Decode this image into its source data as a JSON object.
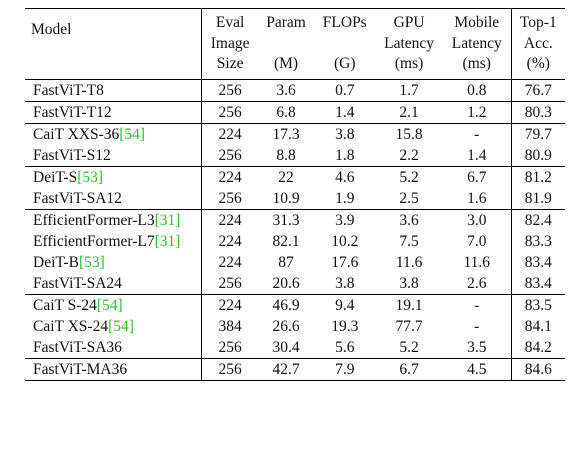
{
  "headers": {
    "model": "Model",
    "eval_image_size": [
      "Eval",
      "Image",
      "Size"
    ],
    "param": [
      "Param",
      "",
      "(M)"
    ],
    "flops": [
      "FLOPs",
      "",
      "(G)"
    ],
    "gpu_latency": [
      "GPU",
      "Latency",
      "(ms)"
    ],
    "mobile_latency": [
      "Mobile",
      "Latency",
      "(ms)"
    ],
    "top1": [
      "Top-1",
      "Acc.",
      "(%)"
    ]
  },
  "groups": [
    {
      "rows": [
        {
          "model": "FastViT-T8",
          "model_bold": true,
          "size": "256",
          "param": "3.6",
          "flops": "0.7",
          "gpu": "1.7",
          "mobile": "0.8",
          "top1": "76.7",
          "bold": [
            "mobile",
            "top1"
          ]
        }
      ]
    },
    {
      "rows": [
        {
          "model": "FastViT-T12",
          "model_bold": true,
          "size": "256",
          "param": "6.8",
          "flops": "1.4",
          "gpu": "2.1",
          "mobile": "1.2",
          "top1": "80.3",
          "bold": [
            "mobile",
            "top1"
          ]
        }
      ]
    },
    {
      "rows": [
        {
          "model": "CaiT XXS-36",
          "ref": "[54]",
          "size": "224",
          "param": "17.3",
          "flops": "3.8",
          "gpu": "15.8",
          "mobile": "-",
          "top1": "79.7",
          "bold": []
        },
        {
          "model": "FastViT-S12",
          "model_bold": true,
          "size": "256",
          "param": "8.8",
          "flops": "1.8",
          "gpu": "2.2",
          "mobile": "1.4",
          "top1": "80.9",
          "bold": [
            "gpu",
            "mobile",
            "top1"
          ]
        }
      ]
    },
    {
      "rows": [
        {
          "model": "DeiT-S",
          "ref": "[53]",
          "size": "224",
          "param": "22",
          "flops": "4.6",
          "gpu": "5.2",
          "mobile": "6.7",
          "top1": "81.2",
          "bold": []
        },
        {
          "model": "FastViT-SA12",
          "model_bold": true,
          "size": "256",
          "param": "10.9",
          "flops": "1.9",
          "gpu": "2.5",
          "mobile": "1.6",
          "top1": "81.9",
          "bold": [
            "gpu",
            "mobile",
            "top1"
          ]
        }
      ]
    },
    {
      "rows": [
        {
          "model": "EfficientFormer-L3",
          "ref": "[31]",
          "size": "224",
          "param": "31.3",
          "flops": "3.9",
          "gpu": "3.6",
          "mobile": "3.0",
          "top1": "82.4",
          "bold": [
            "gpu"
          ]
        },
        {
          "model": "EfficientFormer-L7",
          "ref": "[31]",
          "size": "224",
          "param": "82.1",
          "flops": "10.2",
          "gpu": "7.5",
          "mobile": "7.0",
          "top1": "83.3",
          "bold": []
        },
        {
          "model": "DeiT-B",
          "ref": "[53]",
          "size": "224",
          "param": "87",
          "flops": "17.6",
          "gpu": "11.6",
          "mobile": "11.6",
          "top1": "83.4",
          "bold": [
            "top1"
          ]
        },
        {
          "model": "FastViT-SA24",
          "model_bold": true,
          "size": "256",
          "param": "20.6",
          "flops": "3.8",
          "gpu": "3.8",
          "mobile": "2.6",
          "top1": "83.4",
          "bold": [
            "mobile",
            "top1"
          ]
        }
      ]
    },
    {
      "rows": [
        {
          "model": "CaiT S-24",
          "ref": "[54]",
          "size": "224",
          "param": "46.9",
          "flops": "9.4",
          "gpu": "19.1",
          "mobile": "-",
          "top1": "83.5",
          "bold": []
        },
        {
          "model": "CaiT XS-24",
          "ref": "[54]",
          "size": "384",
          "param": "26.6",
          "flops": "19.3",
          "gpu": "77.7",
          "mobile": "-",
          "top1": "84.1",
          "bold": []
        },
        {
          "model": "FastViT-SA36",
          "model_bold": true,
          "size": "256",
          "param": "30.4",
          "flops": "5.6",
          "gpu": "5.2",
          "mobile": "3.5",
          "top1": "84.2",
          "bold": [
            "gpu",
            "mobile",
            "top1"
          ]
        }
      ]
    },
    {
      "rows": [
        {
          "model": "FastViT-MA36",
          "model_bold": true,
          "size": "256",
          "param": "42.7",
          "flops": "7.9",
          "gpu": "6.7",
          "mobile": "4.5",
          "top1": "84.6",
          "bold": [
            "gpu",
            "mobile",
            "top1"
          ]
        }
      ]
    }
  ],
  "colors": {
    "ref_link": "#2fbf2f",
    "rule": "#000000",
    "text": "#111111"
  }
}
